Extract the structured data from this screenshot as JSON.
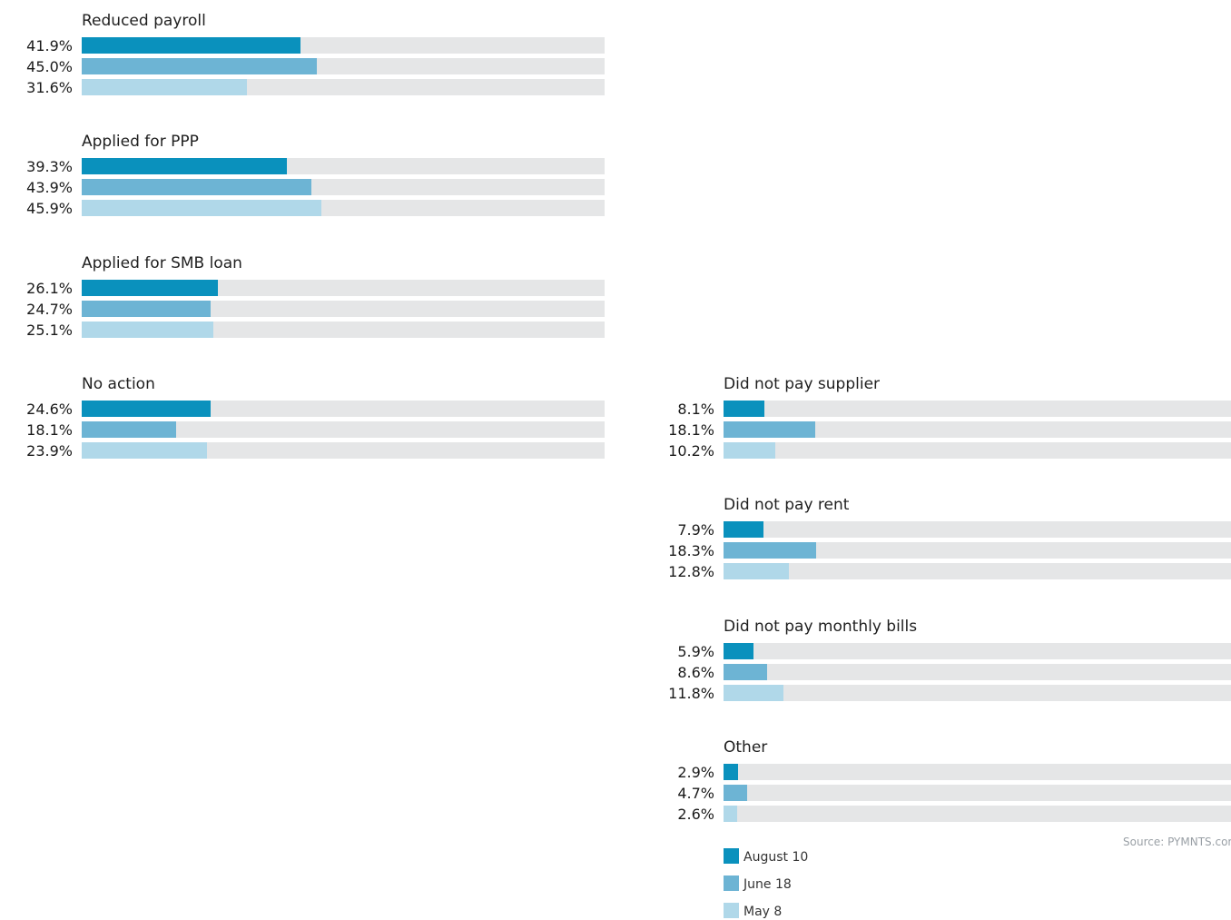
{
  "colors": {
    "August 10": "#0a91bd",
    "June 18": "#6db4d4",
    "May 8": "#b0d8e9",
    "track": "#e5e6e7"
  },
  "legend": [
    {
      "label": "August 10"
    },
    {
      "label": "June 18"
    },
    {
      "label": "May 8"
    }
  ],
  "source": "Source: PYMNTS.com",
  "chart_data": {
    "type": "bar",
    "orientation": "horizontal",
    "xlim": [
      0,
      100
    ],
    "legend_placement": "bottom-right",
    "series_names": [
      "August 10",
      "June 18",
      "May 8"
    ],
    "groups": [
      {
        "title": "Reduced payroll",
        "values": [
          41.9,
          45.0,
          31.6
        ],
        "labels": [
          "41.9%",
          "45.0%",
          "31.6%"
        ]
      },
      {
        "title": "Applied for PPP",
        "values": [
          39.3,
          43.9,
          45.9
        ],
        "labels": [
          "39.3%",
          "43.9%",
          "45.9%"
        ]
      },
      {
        "title": "Applied for SMB loan",
        "values": [
          26.1,
          24.7,
          25.1
        ],
        "labels": [
          "26.1%",
          "24.7%",
          "25.1%"
        ]
      },
      {
        "title": "No action",
        "values": [
          24.6,
          18.1,
          23.9
        ],
        "labels": [
          "24.6%",
          "18.1%",
          "23.9%"
        ]
      },
      {
        "title": "Did not pay supplier",
        "values": [
          8.1,
          18.1,
          10.2
        ],
        "labels": [
          "8.1%",
          "18.1%",
          "10.2%"
        ]
      },
      {
        "title": "Did not pay rent",
        "values": [
          7.9,
          18.3,
          12.8
        ],
        "labels": [
          "7.9%",
          "18.3%",
          "12.8%"
        ]
      },
      {
        "title": "Did not pay monthly bills",
        "values": [
          5.9,
          8.6,
          11.8
        ],
        "labels": [
          "5.9%",
          "8.6%",
          "11.8%"
        ]
      },
      {
        "title": "Other",
        "values": [
          2.9,
          4.7,
          2.6
        ],
        "labels": [
          "2.9%",
          "4.7%",
          "2.6%"
        ]
      }
    ]
  }
}
